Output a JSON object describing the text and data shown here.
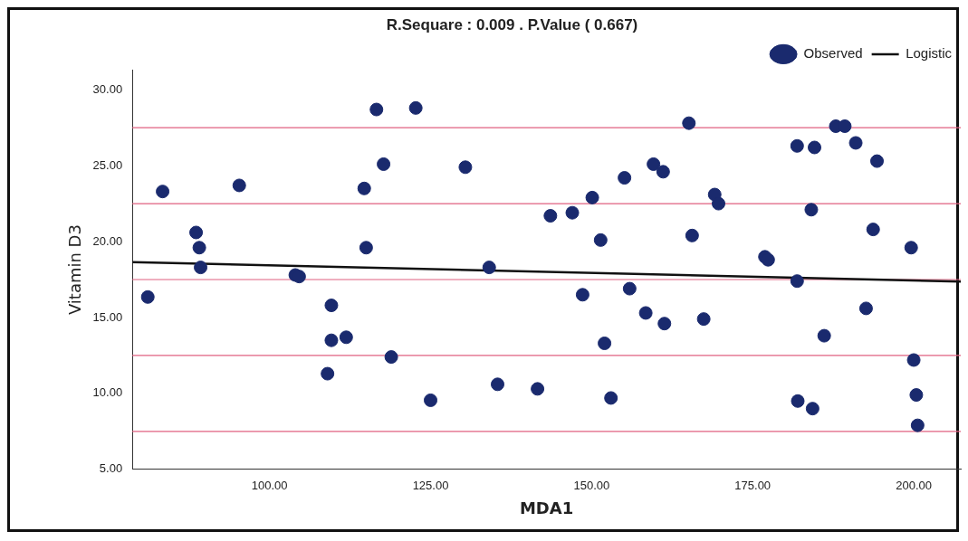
{
  "chart_data": {
    "type": "scatter",
    "title": "R.Sequare : 0.009 . P.Value ( 0.667)",
    "xlabel": "MDA1",
    "ylabel": "Vitamin D3",
    "legend": "top right",
    "grid": false,
    "xlim": [
      78.7,
      207.3
    ],
    "ylim": [
      5,
      31.3
    ],
    "xticks": [
      {
        "value": 100,
        "label": "100.00"
      },
      {
        "value": 125,
        "label": "125.00"
      },
      {
        "value": 150,
        "label": "150.00"
      },
      {
        "value": 175,
        "label": "175.00"
      },
      {
        "value": 200,
        "label": "200.00"
      }
    ],
    "yticks": [
      {
        "value": 5,
        "label": "5.00"
      },
      {
        "value": 10,
        "label": "10.00"
      },
      {
        "value": 15,
        "label": "15.00"
      },
      {
        "value": 20,
        "label": "20.00"
      },
      {
        "value": 25,
        "label": "25.00"
      },
      {
        "value": 30,
        "label": "30.00"
      }
    ],
    "ref_lines": [
      {
        "axis": "y",
        "value": 7.5,
        "color": "#e06080"
      },
      {
        "axis": "y",
        "value": 12.5,
        "color": "#e06080"
      },
      {
        "axis": "y",
        "value": 17.5,
        "color": "#e06080"
      },
      {
        "axis": "y",
        "value": 22.5,
        "color": "#e06080"
      },
      {
        "axis": "y",
        "value": 27.5,
        "color": "#e06080"
      }
    ],
    "series": [
      {
        "name": "Observed",
        "color": "#1a2a6e",
        "marker": "circle",
        "x": [
          81.1,
          83.4,
          88.6,
          89.1,
          89.3,
          95.3,
          104,
          104.6,
          109.6,
          109,
          109.6,
          111.9,
          114.7,
          115,
          116.6,
          117.7,
          118.9,
          122.7,
          125,
          130.4,
          134.1,
          135.4,
          141.6,
          143.6,
          147,
          148.6,
          150.1,
          151.4,
          152,
          153,
          155.1,
          155.9,
          158.4,
          159.6,
          161.1,
          161.3,
          165.1,
          165.6,
          167.4,
          169.1,
          169.7,
          176.9,
          177.4,
          181.9,
          181.9,
          182,
          184.1,
          184.6,
          184.3,
          186.1,
          187.9,
          189.3,
          191,
          192.6,
          193.7,
          194.3,
          199.6,
          200,
          200.4,
          200.6
        ],
        "values": [
          16.35,
          23.3,
          20.6,
          19.6,
          18.3,
          23.7,
          17.8,
          17.7,
          15.8,
          11.3,
          13.5,
          13.7,
          23.5,
          19.6,
          28.7,
          25.1,
          12.4,
          28.8,
          9.55,
          24.9,
          18.3,
          10.6,
          10.3,
          21.7,
          21.9,
          16.5,
          22.9,
          20.1,
          13.3,
          9.7,
          24.2,
          16.9,
          15.3,
          25.1,
          24.6,
          14.6,
          27.8,
          20.4,
          14.9,
          23.1,
          22.5,
          19.0,
          18.8,
          26.3,
          17.4,
          9.5,
          22.1,
          26.2,
          9.0,
          13.8,
          27.6,
          27.6,
          26.5,
          15.6,
          20.8,
          25.3,
          19.6,
          12.2,
          9.9,
          7.9
        ]
      },
      {
        "name": "Logistic",
        "type": "line",
        "marker": "none",
        "color": "#111111",
        "x": [
          78.7,
          207.3
        ],
        "values": [
          18.65,
          17.37
        ]
      }
    ]
  }
}
